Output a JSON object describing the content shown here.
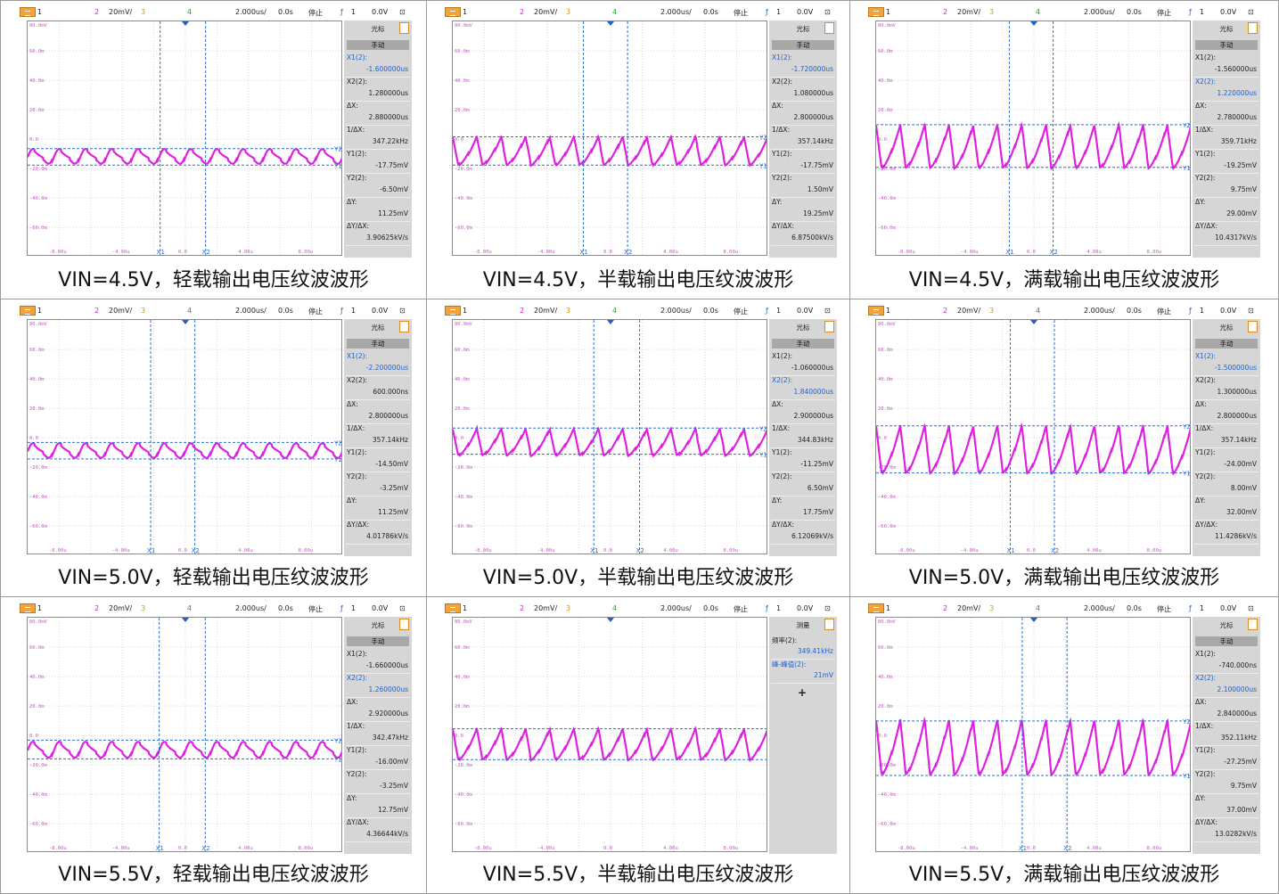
{
  "scope_common": {
    "ch1": "1",
    "ch2": "2",
    "scale": "20mV/",
    "ch3": "3",
    "ch4": "4",
    "timebase": "2.000us/",
    "delay": "0.0s",
    "trig_source": "1",
    "trig_level": "0.0V",
    "cursor_menu": "光标",
    "manual": "手动",
    "y_ticks": [
      "80.0mV",
      "60.0m",
      "40.0m",
      "20.0m",
      "0.0",
      "-20.0m",
      "-40.0m",
      "-60.0m"
    ],
    "x_ticks": [
      "-8.00u",
      "-4.00u",
      "0.0",
      "4.00u",
      "8.00u"
    ]
  },
  "colors": {
    "trace": "#e020e0",
    "cursor": "#2a6fd6",
    "menu_orange": "#f1a43c"
  },
  "panels": [
    {
      "caption": "VIN=4.5V，轻载输出电压纹波波形",
      "status": "停止",
      "cursor_type": "time",
      "readouts": [
        {
          "k": "X1(2):",
          "v": "-1.600000us",
          "sel": true
        },
        {
          "k": "X2(2):",
          "v": "1.280000us",
          "sel": false
        },
        {
          "k": "ΔX:",
          "v": "2.880000us",
          "sel": false
        },
        {
          "k": "1/ΔX:",
          "v": "347.22kHz",
          "sel": false
        },
        {
          "k": "Y1(2):",
          "v": "-17.75mV",
          "sel": false
        },
        {
          "k": "Y2(2):",
          "v": "-6.50mV",
          "sel": false
        },
        {
          "k": "ΔY:",
          "v": "11.25mV",
          "sel": false
        },
        {
          "k": "ΔY/ΔX:",
          "v": "3.90625kV/s",
          "sel": false
        }
      ],
      "cursor_labels": [
        "X1",
        "X2",
        "Y1",
        "Y2"
      ],
      "wave": {
        "amp_mv": 11,
        "center_mv": -12,
        "cycles": 12
      }
    },
    {
      "caption": "VIN=4.5V，半载输出电压纹波波形",
      "status": "停止",
      "readouts": [
        {
          "k": "X1(2):",
          "v": "-1.720000us",
          "sel": true
        },
        {
          "k": "X2(2):",
          "v": "1.080000us",
          "sel": false
        },
        {
          "k": "ΔX:",
          "v": "2.800000us",
          "sel": false
        },
        {
          "k": "1/ΔX:",
          "v": "357.14kHz",
          "sel": false
        },
        {
          "k": "Y1(2):",
          "v": "-17.75mV",
          "sel": false
        },
        {
          "k": "Y2(2):",
          "v": "1.50mV",
          "sel": false
        },
        {
          "k": "ΔY:",
          "v": "19.25mV",
          "sel": false
        },
        {
          "k": "ΔY/ΔX:",
          "v": "6.87500kV/s",
          "sel": false
        }
      ],
      "cursor_labels": [
        "X1",
        "X2",
        "Y1",
        "Y2"
      ],
      "wave": {
        "amp_mv": 19,
        "center_mv": -8,
        "cycles": 13
      }
    },
    {
      "caption": "VIN=4.5V，满载输出电压纹波波形",
      "status": "停止",
      "readouts": [
        {
          "k": "X1(2):",
          "v": "-1.560000us",
          "sel": false
        },
        {
          "k": "X2(2):",
          "v": "1.220000us",
          "sel": true
        },
        {
          "k": "ΔX:",
          "v": "2.780000us",
          "sel": false
        },
        {
          "k": "1/ΔX:",
          "v": "359.71kHz",
          "sel": false
        },
        {
          "k": "Y1(2):",
          "v": "-19.25mV",
          "sel": false
        },
        {
          "k": "Y2(2):",
          "v": "9.75mV",
          "sel": false
        },
        {
          "k": "ΔY:",
          "v": "29.00mV",
          "sel": false
        },
        {
          "k": "ΔY/ΔX:",
          "v": "10.4317kV/s",
          "sel": false
        }
      ],
      "cursor_labels": [
        "X1",
        "X2",
        "Y1",
        "Y2"
      ],
      "wave": {
        "amp_mv": 29,
        "center_mv": -5,
        "cycles": 13
      }
    },
    {
      "caption": "VIN=5.0V，轻载输出电压纹波波形",
      "status": "停止",
      "readouts": [
        {
          "k": "X1(2):",
          "v": "-2.200000us",
          "sel": true
        },
        {
          "k": "X2(2):",
          "v": "600.000ns",
          "sel": false
        },
        {
          "k": "ΔX:",
          "v": "2.800000us",
          "sel": false
        },
        {
          "k": "1/ΔX:",
          "v": "357.14kHz",
          "sel": false
        },
        {
          "k": "Y1(2):",
          "v": "-14.50mV",
          "sel": false
        },
        {
          "k": "Y2(2):",
          "v": "-3.25mV",
          "sel": false
        },
        {
          "k": "ΔY:",
          "v": "11.25mV",
          "sel": false
        },
        {
          "k": "ΔY/ΔX:",
          "v": "4.01786kV/s",
          "sel": false
        }
      ],
      "cursor_labels": [
        "X1",
        "X2",
        "Y1",
        "Y2"
      ],
      "wave": {
        "amp_mv": 11,
        "center_mv": -9,
        "cycles": 12
      }
    },
    {
      "caption": "VIN=5.0V，半载输出电压纹波波形",
      "status": "停止",
      "readouts": [
        {
          "k": "X1(2):",
          "v": "-1.060000us",
          "sel": false
        },
        {
          "k": "X2(2):",
          "v": "1.840000us",
          "sel": true
        },
        {
          "k": "ΔX:",
          "v": "2.900000us",
          "sel": false
        },
        {
          "k": "1/ΔX:",
          "v": "344.83kHz",
          "sel": false
        },
        {
          "k": "Y1(2):",
          "v": "-11.25mV",
          "sel": false
        },
        {
          "k": "Y2(2):",
          "v": "6.50mV",
          "sel": false
        },
        {
          "k": "ΔY:",
          "v": "17.75mV",
          "sel": false
        },
        {
          "k": "ΔY/ΔX:",
          "v": "6.12069kV/s",
          "sel": false
        }
      ],
      "cursor_labels": [
        "X1",
        "X2",
        "Y1",
        "Y2"
      ],
      "wave": {
        "amp_mv": 18,
        "center_mv": -3,
        "cycles": 13
      }
    },
    {
      "caption": "VIN=5.0V，满载输出电压纹波波形",
      "status": "停止",
      "readouts": [
        {
          "k": "X1(2):",
          "v": "-1.500000us",
          "sel": true
        },
        {
          "k": "X2(2):",
          "v": "1.300000us",
          "sel": false
        },
        {
          "k": "ΔX:",
          "v": "2.800000us",
          "sel": false
        },
        {
          "k": "1/ΔX:",
          "v": "357.14kHz",
          "sel": false
        },
        {
          "k": "Y1(2):",
          "v": "-24.00mV",
          "sel": false
        },
        {
          "k": "Y2(2):",
          "v": "8.00mV",
          "sel": false
        },
        {
          "k": "ΔY:",
          "v": "32.00mV",
          "sel": false
        },
        {
          "k": "ΔY/ΔX:",
          "v": "11.4286kV/s",
          "sel": false
        }
      ],
      "cursor_labels": [
        "X1",
        "X2",
        "Y1",
        "Y2"
      ],
      "wave": {
        "amp_mv": 32,
        "center_mv": -8,
        "cycles": 13
      }
    },
    {
      "caption": "VIN=5.5V，轻载输出电压纹波波形",
      "status": "停止",
      "readouts": [
        {
          "k": "X1(2):",
          "v": "-1.660000us",
          "sel": false
        },
        {
          "k": "X2(2):",
          "v": "1.260000us",
          "sel": true
        },
        {
          "k": "ΔX:",
          "v": "2.920000us",
          "sel": false
        },
        {
          "k": "1/ΔX:",
          "v": "342.47kHz",
          "sel": false
        },
        {
          "k": "Y1(2):",
          "v": "-16.00mV",
          "sel": false
        },
        {
          "k": "Y2(2):",
          "v": "-3.25mV",
          "sel": false
        },
        {
          "k": "ΔY:",
          "v": "12.75mV",
          "sel": false
        },
        {
          "k": "ΔY/ΔX:",
          "v": "4.36644kV/s",
          "sel": false
        }
      ],
      "cursor_labels": [
        "X1",
        "X2",
        "Y1",
        "Y2"
      ],
      "wave": {
        "amp_mv": 12,
        "center_mv": -10,
        "cycles": 12
      }
    },
    {
      "caption": "VIN=5.5V，半载输出电压纹波波形",
      "status": "停止",
      "measure_title": "测量",
      "measures": [
        {
          "k": "频率(2):",
          "v": "349.41kHz"
        },
        {
          "k": "峰-峰值(2):",
          "v": "21mV"
        }
      ],
      "add_symbol": "+",
      "cursor_labels": [],
      "wave": {
        "amp_mv": 21,
        "center_mv": -6,
        "cycles": 13
      }
    },
    {
      "caption": "VIN=5.5V，满载输出电压纹波波形",
      "status": "停止",
      "readouts": [
        {
          "k": "X1(2):",
          "v": "-740.000ns",
          "sel": false
        },
        {
          "k": "X2(2):",
          "v": "2.100000us",
          "sel": true
        },
        {
          "k": "ΔX:",
          "v": "2.840000us",
          "sel": false
        },
        {
          "k": "1/ΔX:",
          "v": "352.11kHz",
          "sel": false
        },
        {
          "k": "Y1(2):",
          "v": "-27.25mV",
          "sel": false
        },
        {
          "k": "Y2(2):",
          "v": "9.75mV",
          "sel": false
        },
        {
          "k": "ΔY:",
          "v": "37.00mV",
          "sel": false
        },
        {
          "k": "ΔY/ΔX:",
          "v": "13.0282kV/s",
          "sel": false
        }
      ],
      "cursor_labels": [
        "X1",
        "X2",
        "Y1",
        "Y2"
      ],
      "wave": {
        "amp_mv": 37,
        "center_mv": -8,
        "cycles": 13
      }
    }
  ]
}
